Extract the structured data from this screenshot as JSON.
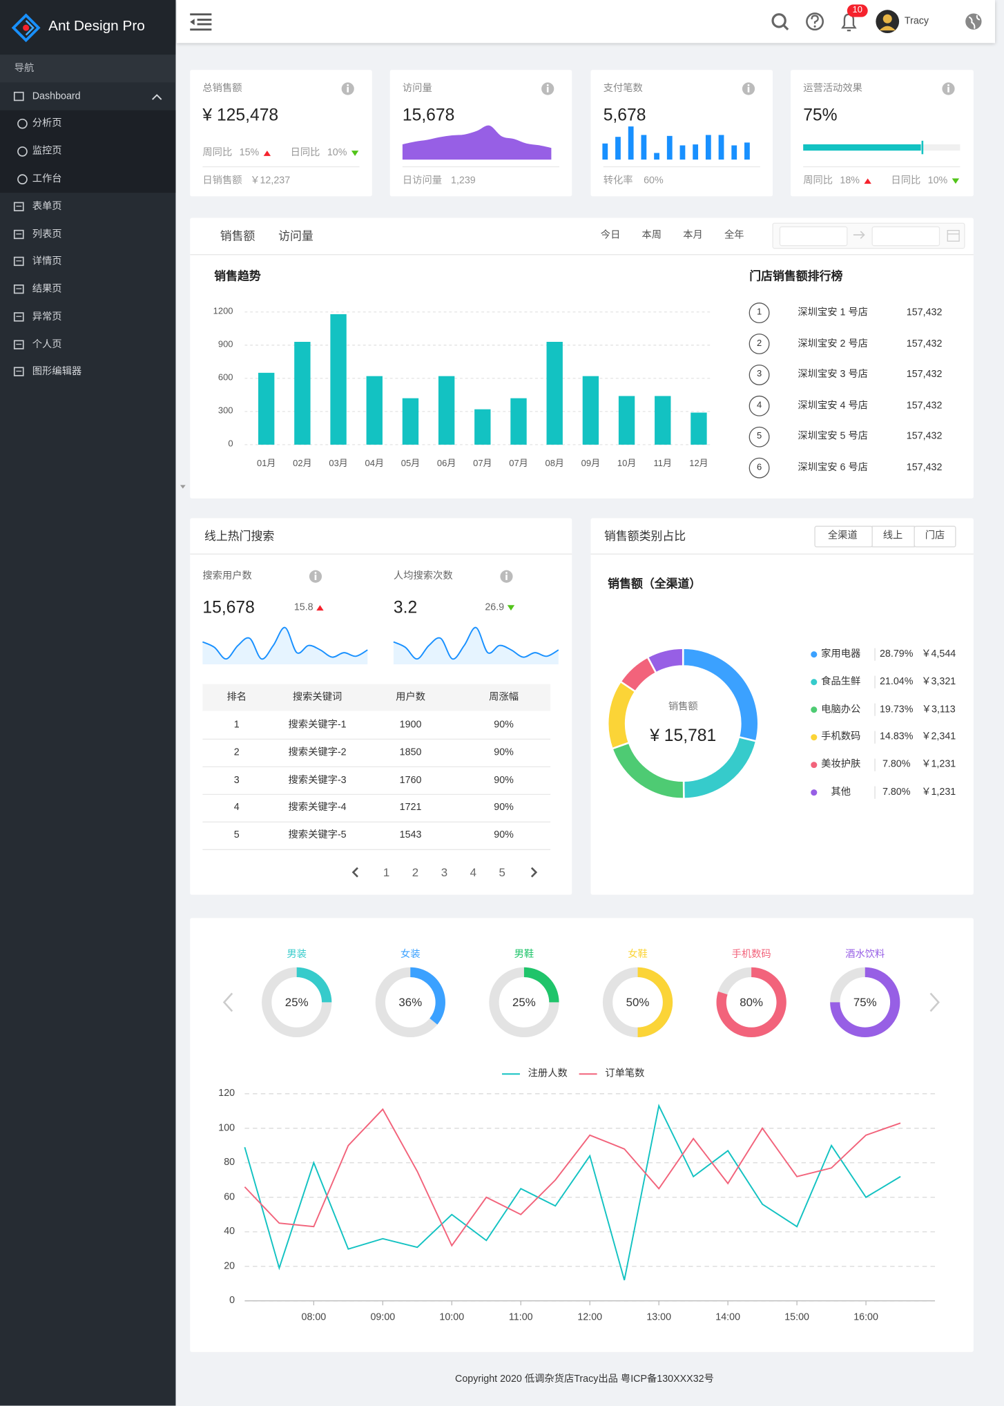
{
  "sidebar": {
    "logo": "Ant Design Pro",
    "section": "导航",
    "menu": [
      {
        "label": "Dashboard",
        "children": [
          "分析页",
          "监控页",
          "工作台"
        ]
      },
      {
        "label": "表单页"
      },
      {
        "label": "列表页"
      },
      {
        "label": "详情页"
      },
      {
        "label": "结果页"
      },
      {
        "label": "异常页"
      },
      {
        "label": "个人页"
      },
      {
        "label": "图形编辑器"
      }
    ]
  },
  "header": {
    "notification_count": 10,
    "user": "Tracy"
  },
  "stat_cards": [
    {
      "title": "总销售额",
      "value": "¥ 125,478",
      "trends": [
        {
          "label": "周同比",
          "value": "15%",
          "direction": "up"
        },
        {
          "label": "日同比",
          "value": "10%",
          "direction": "down"
        }
      ],
      "footer": {
        "label": "日销售额",
        "value": "￥12,237"
      }
    },
    {
      "title": "访问量",
      "value": "15,678",
      "chart": {
        "type": "area",
        "color": "#975fe5",
        "values": [
          17,
          20,
          22,
          25,
          27,
          28,
          32,
          38,
          26,
          23,
          18,
          16,
          13
        ],
        "ylim": [
          0,
          40
        ]
      },
      "footer": {
        "label": "日访问量",
        "value": "1,239"
      }
    },
    {
      "title": "支付笔数",
      "value": "5,678",
      "chart": {
        "type": "bar",
        "color": "#1890ff",
        "values": [
          17,
          24,
          35,
          26,
          7,
          25,
          15,
          16,
          26,
          26,
          15,
          18
        ],
        "ylim": [
          0,
          36
        ]
      },
      "footer": {
        "label": "转化率",
        "value": "60%"
      }
    },
    {
      "title": "运营活动效果",
      "value": "75%",
      "progress": {
        "percent": 75,
        "target": 76,
        "color": "#13c2c2"
      },
      "trends": [
        {
          "label": "周同比",
          "value": "18%",
          "direction": "up"
        },
        {
          "label": "日同比",
          "value": "10%",
          "direction": "down"
        }
      ]
    }
  ],
  "sales": {
    "tabs": [
      "销售额",
      "访问量"
    ],
    "ranges": [
      "今日",
      "本周",
      "本月",
      "全年"
    ],
    "chart": {
      "type": "bar",
      "title": "销售趋势",
      "categories": [
        "01月",
        "02月",
        "03月",
        "04月",
        "05月",
        "06月",
        "07月",
        "07月",
        "08月",
        "09月",
        "10月",
        "11月",
        "12月"
      ],
      "values": [
        650,
        930,
        1180,
        620,
        420,
        620,
        320,
        420,
        930,
        620,
        440,
        440,
        290
      ],
      "color": "#13c2c2",
      "ylim": [
        0,
        1200
      ],
      "yticks": [
        0,
        300,
        600,
        900,
        1200
      ],
      "grid": true
    },
    "ranking": {
      "title": "门店销售额排行榜",
      "rows": [
        {
          "rank": 1,
          "name": "深圳宝安 1 号店",
          "value": "157,432"
        },
        {
          "rank": 2,
          "name": "深圳宝安 2 号店",
          "value": "157,432"
        },
        {
          "rank": 3,
          "name": "深圳宝安 3 号店",
          "value": "157,432"
        },
        {
          "rank": 4,
          "name": "深圳宝安 4 号店",
          "value": "157,432"
        },
        {
          "rank": 5,
          "name": "深圳宝安 5 号店",
          "value": "157,432"
        },
        {
          "rank": 6,
          "name": "深圳宝安 6 号店",
          "value": "157,432"
        }
      ]
    }
  },
  "hot_search": {
    "title": "线上热门搜索",
    "metrics": [
      {
        "label": "搜索用户数",
        "value": "15,678",
        "change": "15.8",
        "direction": "up",
        "chart": {
          "type": "area",
          "color": "#1890ff",
          "values": [
            25,
            19,
            6,
            21,
            29,
            6,
            21,
            41,
            13,
            21,
            16,
            8,
            13,
            9,
            16
          ],
          "ylim": [
            0,
            46
          ]
        }
      },
      {
        "label": "人均搜索次数",
        "value": "3.2",
        "change": "26.9",
        "direction": "down",
        "chart": {
          "type": "area",
          "color": "#1890ff",
          "values": [
            25,
            19,
            6,
            21,
            29,
            6,
            21,
            41,
            13,
            21,
            16,
            8,
            13,
            9,
            16
          ],
          "ylim": [
            0,
            46
          ]
        }
      }
    ],
    "table": {
      "columns": [
        "排名",
        "搜索关键词",
        "用户数",
        "周涨幅"
      ],
      "rows": [
        [
          1,
          "搜索关键字-1",
          1900,
          "90%"
        ],
        [
          2,
          "搜索关键字-2",
          1850,
          "90%"
        ],
        [
          3,
          "搜索关键字-3",
          1760,
          "90%"
        ],
        [
          4,
          "搜索关键字-4",
          1721,
          "90%"
        ],
        [
          5,
          "搜索关键字-5",
          1543,
          "90%"
        ]
      ]
    },
    "pagination": {
      "pages": [
        1,
        2,
        3,
        4,
        5
      ]
    }
  },
  "category": {
    "title": "销售额类别占比",
    "filters": [
      "全渠道",
      "线上",
      "门店"
    ],
    "subtitle": "销售额（全渠道）",
    "total_label": "销售额",
    "total": "¥ 15,781",
    "chart": {
      "type": "pie",
      "categories": [
        "家用电器",
        "食品生鲜",
        "电脑办公",
        "手机数码",
        "美妆护肤",
        "其他"
      ],
      "values": [
        28.79,
        21.04,
        19.73,
        14.83,
        7.8,
        7.8
      ],
      "value_labels": [
        "28.79%",
        "21.04%",
        "19.73%",
        "14.83%",
        "7.80%",
        "7.80%"
      ],
      "amounts": [
        "￥4,544",
        "￥3,321",
        "￥3,113",
        "￥2,341",
        "￥1,231",
        "￥1,231"
      ],
      "colors": [
        "#3ba1ff",
        "#36cbcb",
        "#4ecb73",
        "#fbd437",
        "#f2637b",
        "#975fe5"
      ]
    }
  },
  "category_rings": {
    "items": [
      {
        "name": "男装",
        "percent": 25,
        "label": "25%",
        "color": "#36cbcb"
      },
      {
        "name": "女装",
        "percent": 36,
        "label": "36%",
        "color": "#3ba1ff"
      },
      {
        "name": "男鞋",
        "percent": 25,
        "label": "25%",
        "color": "#1fc46a"
      },
      {
        "name": "女鞋",
        "percent": 50,
        "label": "50%",
        "color": "#fbd437"
      },
      {
        "name": "手机数码",
        "percent": 80,
        "label": "80%",
        "color": "#f2637b"
      },
      {
        "name": "酒水饮料",
        "percent": 75,
        "label": "75%",
        "color": "#975fe5"
      }
    ]
  },
  "trend": {
    "type": "line",
    "x": [
      7,
      7.5,
      8,
      8.5,
      9,
      9.5,
      10,
      10.5,
      11,
      11.5,
      12,
      12.5,
      13,
      13.5,
      14,
      14.5,
      15,
      15.5,
      16,
      16.5
    ],
    "series": [
      {
        "name": "注册人数",
        "color": "#13c2c2",
        "values": [
          89,
          19,
          80,
          30,
          36,
          31,
          50,
          35,
          65,
          55,
          84,
          12,
          113,
          72,
          87,
          56,
          43,
          90,
          60,
          72
        ]
      },
      {
        "name": "订单笔数",
        "color": "#f2637b",
        "values": [
          66,
          45,
          43,
          90,
          111,
          75,
          32,
          60,
          50,
          70,
          96,
          88,
          65,
          94,
          68,
          100,
          72,
          77,
          96,
          103
        ]
      }
    ],
    "xlim": [
      7,
      17
    ],
    "xticks": [
      {
        "value": 8,
        "label": "08:00"
      },
      {
        "value": 9,
        "label": "09:00"
      },
      {
        "value": 10,
        "label": "10:00"
      },
      {
        "value": 11,
        "label": "11:00"
      },
      {
        "value": 12,
        "label": "12:00"
      },
      {
        "value": 13,
        "label": "13:00"
      },
      {
        "value": 14,
        "label": "14:00"
      },
      {
        "value": 15,
        "label": "15:00"
      },
      {
        "value": 16,
        "label": "16:00"
      }
    ],
    "ylim": [
      0,
      120
    ],
    "yticks": [
      0,
      20,
      40,
      60,
      80,
      100,
      120
    ],
    "grid": true
  },
  "footer": {
    "copyright": "Copyright  2020 低调杂货店Tracy出品 粤ICP备130XXX32号"
  }
}
